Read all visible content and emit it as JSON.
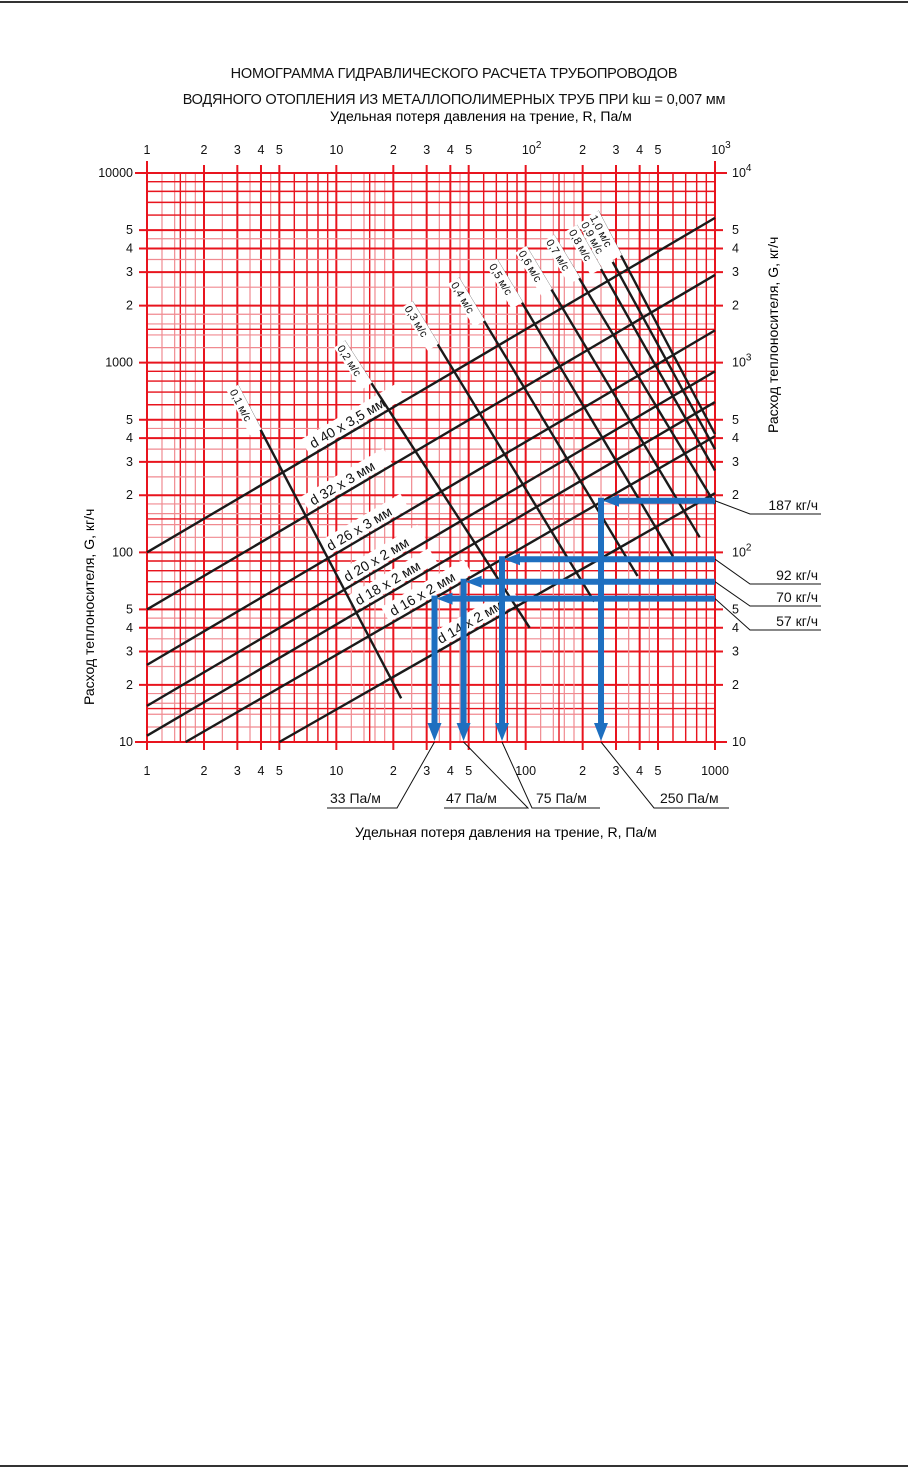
{
  "title_line1": "НОМОГРАММА ГИДРАВЛИЧЕСКОГО РАСЧЕТА ТРУБОПРОВОДОВ",
  "title_line2": "ВОДЯНОГО ОТОПЛЕНИЯ ИЗ МЕТАЛЛОПОЛИМЕРНЫХ ТРУБ ПРИ kш = 0,007 мм",
  "colors": {
    "grid": "#e8141e",
    "grid_minor": "#f08a90",
    "lines": "#1a1a1a",
    "arrows": "#1e6fc0"
  },
  "chart_data": {
    "type": "line",
    "title": "НОМОГРАММА ГИДРАВЛИЧЕСКОГО РАСЧЕТА ТРУБОПРОВОДОВ ВОДЯНОГО ОТОПЛЕНИЯ ИЗ МЕТАЛЛОПОЛИМЕРНЫХ ТРУБ ПРИ kш = 0,007 мм",
    "xlabel": "Удельная потеря давления на трение, R, Па/м",
    "ylabel": "Расход теплоносителя, G, кг/ч",
    "x_scale": "log",
    "y_scale": "log",
    "xlim": [
      1,
      1000
    ],
    "ylim": [
      10,
      10000
    ],
    "grid": true,
    "top_x_ticks": [
      {
        "v": 1,
        "t": "1"
      },
      {
        "v": 2,
        "t": "2"
      },
      {
        "v": 3,
        "t": "3"
      },
      {
        "v": 4,
        "t": "4"
      },
      {
        "v": 5,
        "t": "5"
      },
      {
        "v": 10,
        "t": "10"
      },
      {
        "v": 20,
        "t": "2"
      },
      {
        "v": 30,
        "t": "3"
      },
      {
        "v": 40,
        "t": "4"
      },
      {
        "v": 50,
        "t": "5"
      },
      {
        "v": 100,
        "t": "10",
        "sup": "2"
      },
      {
        "v": 200,
        "t": "2"
      },
      {
        "v": 300,
        "t": "3"
      },
      {
        "v": 400,
        "t": "4"
      },
      {
        "v": 500,
        "t": "5"
      },
      {
        "v": 1000,
        "t": "10",
        "sup": "3"
      }
    ],
    "bottom_x_ticks": [
      {
        "v": 1,
        "t": "1"
      },
      {
        "v": 2,
        "t": "2"
      },
      {
        "v": 3,
        "t": "3"
      },
      {
        "v": 4,
        "t": "4"
      },
      {
        "v": 5,
        "t": "5"
      },
      {
        "v": 10,
        "t": "10"
      },
      {
        "v": 20,
        "t": "2"
      },
      {
        "v": 30,
        "t": "3"
      },
      {
        "v": 40,
        "t": "4"
      },
      {
        "v": 50,
        "t": "5"
      },
      {
        "v": 100,
        "t": "100"
      },
      {
        "v": 200,
        "t": "2"
      },
      {
        "v": 300,
        "t": "3"
      },
      {
        "v": 400,
        "t": "4"
      },
      {
        "v": 500,
        "t": "5"
      },
      {
        "v": 1000,
        "t": "1000"
      }
    ],
    "left_y_ticks": [
      {
        "v": 10000,
        "t": "10000"
      },
      {
        "v": 5000,
        "t": "5"
      },
      {
        "v": 4000,
        "t": "4"
      },
      {
        "v": 3000,
        "t": "3"
      },
      {
        "v": 2000,
        "t": "2"
      },
      {
        "v": 1000,
        "t": "1000"
      },
      {
        "v": 500,
        "t": "5"
      },
      {
        "v": 400,
        "t": "4"
      },
      {
        "v": 300,
        "t": "3"
      },
      {
        "v": 200,
        "t": "2"
      },
      {
        "v": 100,
        "t": "100"
      },
      {
        "v": 50,
        "t": "5"
      },
      {
        "v": 40,
        "t": "4"
      },
      {
        "v": 30,
        "t": "3"
      },
      {
        "v": 20,
        "t": "2"
      },
      {
        "v": 10,
        "t": "10"
      }
    ],
    "right_y_ticks": [
      {
        "v": 10000,
        "t": "10",
        "sup": "4"
      },
      {
        "v": 5000,
        "t": "5"
      },
      {
        "v": 4000,
        "t": "4"
      },
      {
        "v": 3000,
        "t": "3"
      },
      {
        "v": 2000,
        "t": "2"
      },
      {
        "v": 1000,
        "t": "10",
        "sup": "3"
      },
      {
        "v": 500,
        "t": "5"
      },
      {
        "v": 400,
        "t": "4"
      },
      {
        "v": 300,
        "t": "3"
      },
      {
        "v": 200,
        "t": "2"
      },
      {
        "v": 100,
        "t": "10",
        "sup": "2"
      },
      {
        "v": 50,
        "t": "5"
      },
      {
        "v": 40,
        "t": "4"
      },
      {
        "v": 30,
        "t": "3"
      },
      {
        "v": 20,
        "t": "2"
      },
      {
        "v": 10,
        "t": "10"
      }
    ],
    "diameter_series": [
      {
        "name": "d 40 x 3,5 мм",
        "points": [
          [
            1,
            100
          ],
          [
            1000,
            5800
          ]
        ]
      },
      {
        "name": "d 32 x 3 мм",
        "points": [
          [
            1,
            50
          ],
          [
            1000,
            2900
          ]
        ]
      },
      {
        "name": "d 26 x 3 мм",
        "points": [
          [
            1,
            25.5
          ],
          [
            1000,
            1480
          ]
        ]
      },
      {
        "name": "d 20 x 2 мм",
        "points": [
          [
            1,
            15.5
          ],
          [
            1000,
            900
          ]
        ]
      },
      {
        "name": "d 18 x 2 мм",
        "points": [
          [
            1,
            10.8
          ],
          [
            1000,
            620
          ]
        ]
      },
      {
        "name": "d 16 x 2 мм",
        "points": [
          [
            1.6,
            10
          ],
          [
            1000,
            410
          ]
        ]
      },
      {
        "name": "d 14 x 2 мм",
        "points": [
          [
            5,
            10
          ],
          [
            1000,
            205
          ]
        ]
      }
    ],
    "velocity_series": [
      {
        "name": "0,1 м/с",
        "points": [
          [
            3,
            760
          ],
          [
            22,
            17
          ]
        ]
      },
      {
        "name": "0,2 м/с",
        "points": [
          [
            11,
            1300
          ],
          [
            105,
            40
          ]
        ]
      },
      {
        "name": "0,3 м/с",
        "points": [
          [
            25,
            2100
          ],
          [
            230,
            55
          ]
        ]
      },
      {
        "name": "0,4 м/с",
        "points": [
          [
            44,
            2800
          ],
          [
            390,
            75
          ]
        ]
      },
      {
        "name": "0,5 м/с",
        "points": [
          [
            70,
            3500
          ],
          [
            600,
            95
          ]
        ]
      },
      {
        "name": "0,6 м/с",
        "points": [
          [
            100,
            4100
          ],
          [
            830,
            120
          ]
        ]
      },
      {
        "name": "0,7 м/с",
        "points": [
          [
            140,
            4700
          ],
          [
            1000,
            180
          ]
        ]
      },
      {
        "name": "0,8 м/с",
        "points": [
          [
            185,
            5300
          ],
          [
            1000,
            270
          ]
        ]
      },
      {
        "name": "0,9 м/с",
        "points": [
          [
            215,
            5800
          ],
          [
            1000,
            350
          ]
        ]
      },
      {
        "name": "1,0 м/с",
        "points": [
          [
            240,
            6300
          ],
          [
            1000,
            420
          ]
        ]
      }
    ],
    "examples": [
      {
        "flow": 187,
        "flow_label": "187 кг/ч",
        "r": 250,
        "r_label": "250 Па/м"
      },
      {
        "flow": 92,
        "flow_label": "92 кг/ч",
        "r": 75,
        "r_label": "75 Па/м"
      },
      {
        "flow": 70,
        "flow_label": "70 кг/ч",
        "r": 47,
        "r_label": "47 Па/м"
      },
      {
        "flow": 57,
        "flow_label": "57 кг/ч",
        "r": 33,
        "r_label": "33 Па/м"
      }
    ]
  }
}
